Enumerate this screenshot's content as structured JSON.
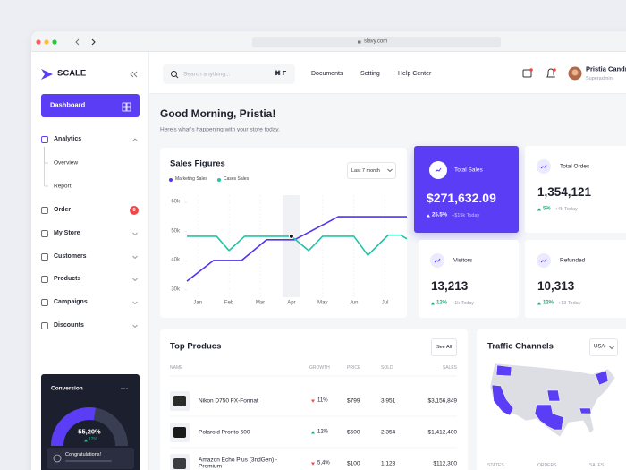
{
  "browser": {
    "url": "slavy.com"
  },
  "sidebar": {
    "brand": "SCALE",
    "active": "Dashboard",
    "menu": [
      {
        "label": "Analytics",
        "children": [
          "Overview",
          "Report"
        ]
      },
      {
        "label": "Order",
        "badge": "8"
      },
      {
        "label": "My Store"
      },
      {
        "label": "Customers"
      },
      {
        "label": "Products"
      },
      {
        "label": "Campaigns"
      },
      {
        "label": "Discounts"
      }
    ]
  },
  "conversion": {
    "title": "Conversion",
    "value": 55.2,
    "value_label": "55,20%",
    "change": "12%",
    "message": "Congratulations!"
  },
  "topbar": {
    "search_placeholder": "Search anything...",
    "shortcut": "⌘ F",
    "links": [
      "Documents",
      "Setting",
      "Help Center"
    ],
    "user": {
      "name": "Pristia Candra",
      "role": "Superadmin"
    }
  },
  "greeting": {
    "title": "Good Morning, Pristia!",
    "subtitle": "Here's what's happening with your store today."
  },
  "chart_data": {
    "type": "line",
    "title": "Sales Figures",
    "period": "Last 7 month",
    "xlim": [
      -0.35,
      6.7
    ],
    "xticks": [
      {
        "value": 0,
        "label": "Jan"
      },
      {
        "value": 1,
        "label": "Feb"
      },
      {
        "value": 2,
        "label": "Mar"
      },
      {
        "value": 3,
        "label": "Apr"
      },
      {
        "value": 4,
        "label": "May"
      },
      {
        "value": 5,
        "label": "Jun"
      },
      {
        "value": 6,
        "label": "Jul"
      }
    ],
    "ylim": [
      27500,
      62500
    ],
    "yticks": [
      {
        "value": 30000,
        "label": "30k"
      },
      {
        "value": 40000,
        "label": "40k"
      },
      {
        "value": 50000,
        "label": "50k"
      },
      {
        "value": 60000,
        "label": "60k"
      }
    ],
    "hover_x": 3,
    "series": [
      {
        "name": "Marketing Sales",
        "color": "#4f35f0",
        "x": [
          -0.35,
          0.5,
          1.4,
          2.2,
          3.1,
          4.5,
          6.7
        ],
        "values": [
          33000,
          40100,
          40100,
          47200,
          47200,
          55100,
          55100
        ]
      },
      {
        "name": "Cases Sales",
        "color": "#22c3a6",
        "x": [
          -0.35,
          0.6,
          1.0,
          1.5,
          3.0,
          3.55,
          4.0,
          5.0,
          5.45,
          6.1,
          6.5,
          6.7
        ],
        "values": [
          48400,
          48400,
          43500,
          48400,
          48400,
          43500,
          48400,
          48400,
          41900,
          48800,
          48800,
          47500
        ]
      }
    ]
  },
  "stats": [
    {
      "label": "Total Sales",
      "value": "$271,632.09",
      "change": "25.5%",
      "today": "+$15k Today"
    },
    {
      "label": "Total Ordes",
      "value": "1,354,121",
      "change": "5%",
      "today": "+4k Today"
    },
    {
      "label": "Visitors",
      "value": "13,213",
      "change": "12%",
      "today": "+1k Today"
    },
    {
      "label": "Refunded",
      "value": "10,313",
      "change": "12%",
      "today": "+13 Today"
    }
  ],
  "products": {
    "title": "Top Producs",
    "action": "See All",
    "columns": [
      "NAME",
      "GROWTH",
      "PRICE",
      "SOLD",
      "SALES"
    ],
    "rows": [
      {
        "name": "Nikon D750 FX-Format",
        "trend": "down",
        "growth": "11%",
        "price": "$799",
        "sold": "3,951",
        "sales": "$3,156,849"
      },
      {
        "name": "Polaroid Pronto 600",
        "trend": "up",
        "growth": "12%",
        "price": "$600",
        "sold": "2,354",
        "sales": "$1,412,400"
      },
      {
        "name": "Amazon Echo Plus (3ndGen) - Premium",
        "trend": "down",
        "growth": "5,4%",
        "price": "$100",
        "sold": "1,123",
        "sales": "$112,300"
      }
    ]
  },
  "traffic": {
    "title": "Traffic Channels",
    "country": "USA",
    "columns": [
      "STATES",
      "ORDERS",
      "SALES"
    ]
  }
}
